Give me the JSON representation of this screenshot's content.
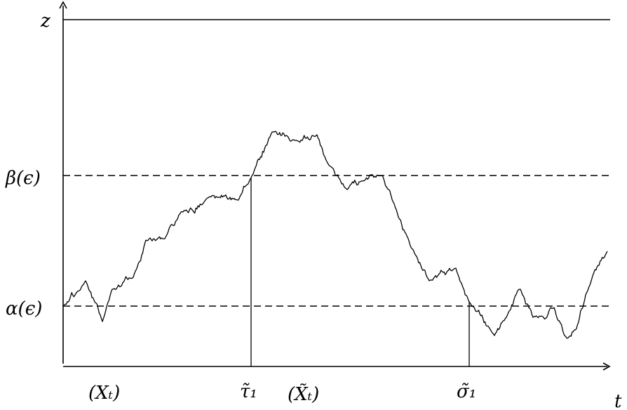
{
  "diagram": {
    "levels": [
      {
        "id": "z",
        "label": "z",
        "style": "solid"
      },
      {
        "id": "beta",
        "label": "β(ϵ)",
        "style": "dashed"
      },
      {
        "id": "alpha",
        "label": "α(ϵ)",
        "style": "dashed"
      }
    ],
    "axis_labels": {
      "t": "t"
    },
    "time_markers": [
      {
        "id": "tau1",
        "label": "τ̃₁"
      },
      {
        "id": "sigma1",
        "label": "σ̃₁"
      }
    ],
    "process_labels": [
      {
        "id": "X",
        "label": "(Xₜ)"
      },
      {
        "id": "Xtilde",
        "label": "(X̃ₜ)"
      }
    ],
    "path": {
      "color": "#000000",
      "seed": 7
    }
  }
}
